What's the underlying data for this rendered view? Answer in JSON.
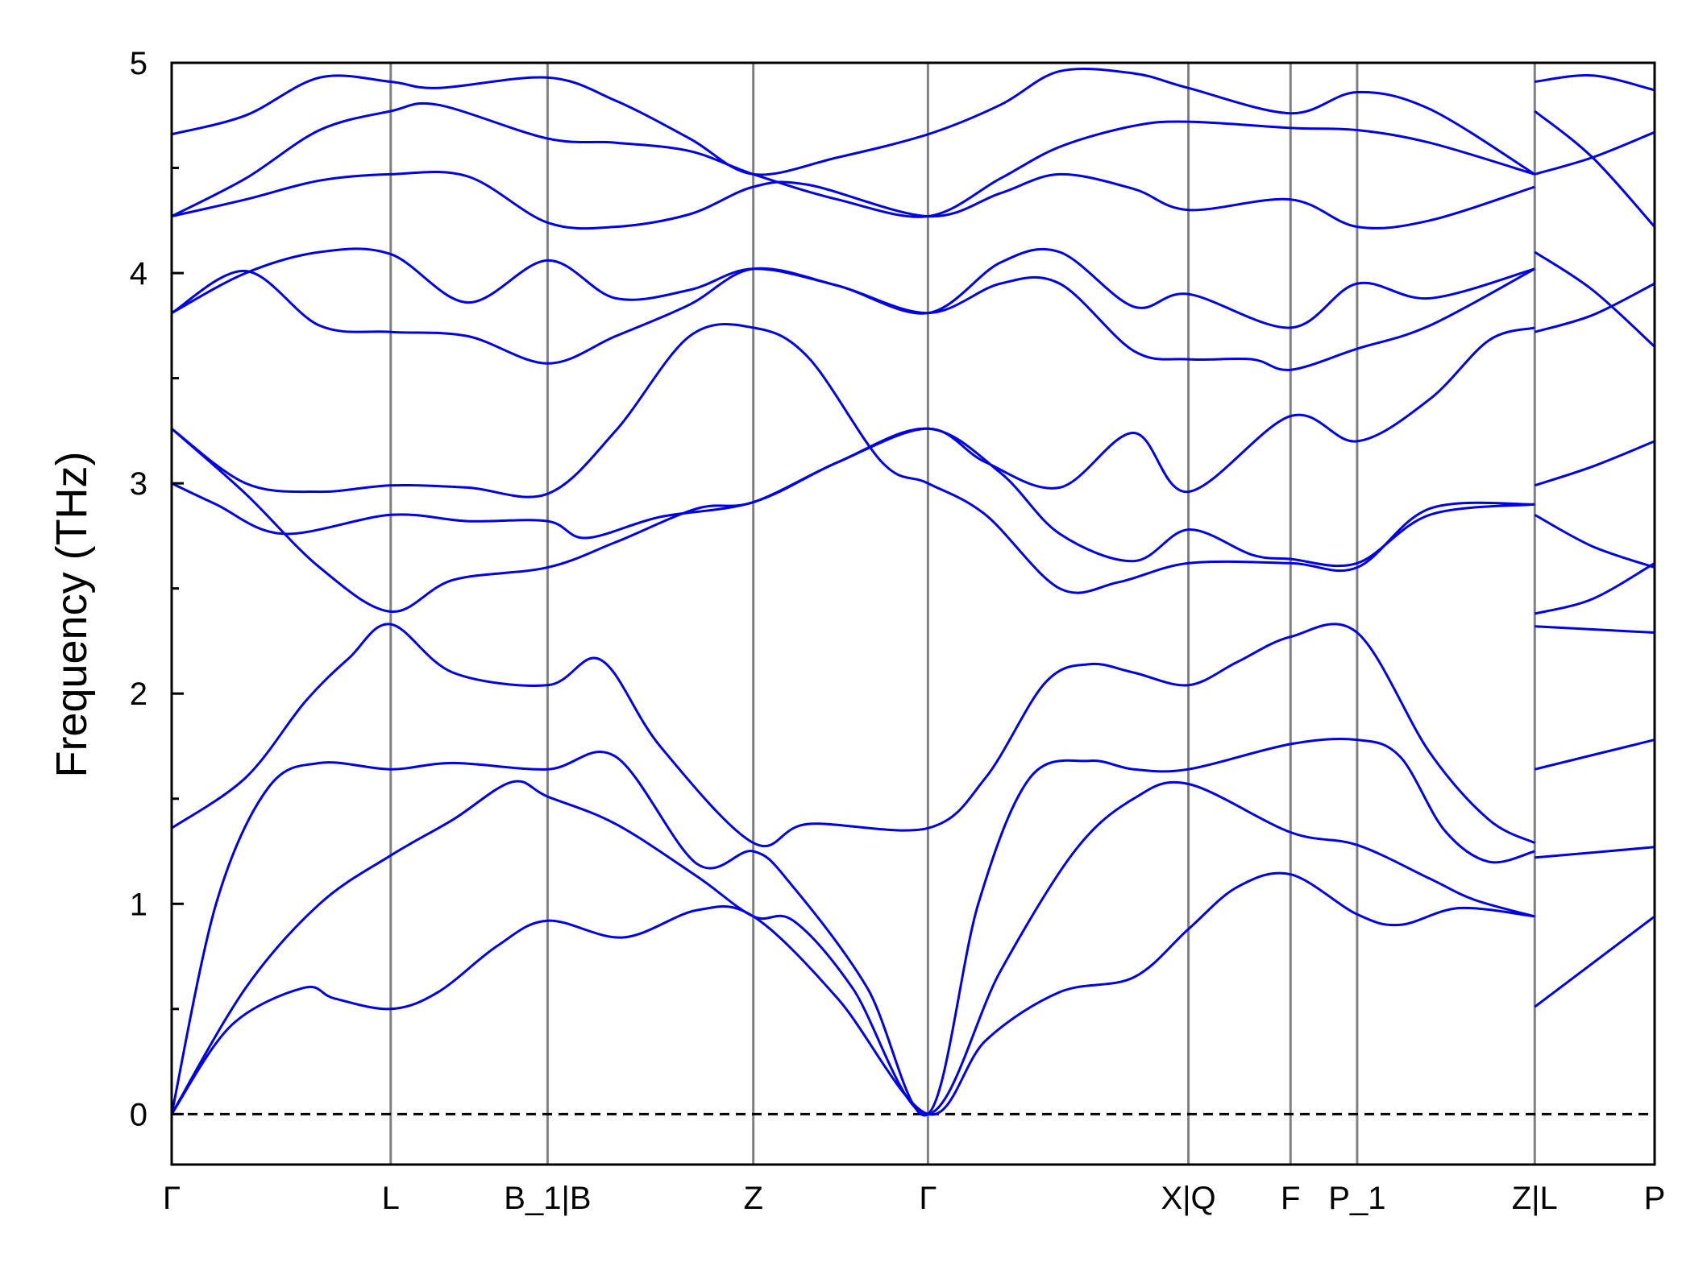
{
  "chart_data": {
    "type": "line",
    "title": "",
    "xlabel": "",
    "ylabel": "Frequency (THz)",
    "ylim": [
      -0.24,
      5.0
    ],
    "y_ticks": [
      0,
      1,
      2,
      3,
      4,
      5
    ],
    "y_minor_ticks": [
      0.5,
      1.5,
      2.5,
      3.5,
      4.5
    ],
    "grid": false,
    "legend": "none",
    "line_color": "#0000e6",
    "kpath_line_color": "#808080",
    "zero_line": {
      "y": 0,
      "style": "dashed",
      "color": "#000000"
    },
    "kpoints": [
      {
        "label": "Γ",
        "x": 0.0
      },
      {
        "label": "L",
        "x": 1.48
      },
      {
        "label": "B_1|B",
        "x": 2.54
      },
      {
        "label": "Z",
        "x": 3.93
      },
      {
        "label": "Γ",
        "x": 5.11
      },
      {
        "label": "X|Q",
        "x": 6.87
      },
      {
        "label": "F",
        "x": 7.56
      },
      {
        "label": "P_1",
        "x": 8.01
      },
      {
        "label": "Z|L",
        "x": 9.21
      },
      {
        "label": "P",
        "x": 10.02
      }
    ],
    "xlim": [
      0.0,
      10.02
    ],
    "series": [
      {
        "values": [
          [
            0.0,
            0.0
          ],
          [
            0.4,
            0.42
          ],
          [
            0.89,
            0.6
          ],
          [
            1.1,
            0.55
          ],
          [
            1.48,
            0.5
          ],
          [
            1.8,
            0.58
          ],
          [
            2.2,
            0.8
          ],
          [
            2.54,
            0.92
          ],
          [
            3.05,
            0.84
          ],
          [
            3.55,
            0.97
          ],
          [
            3.93,
            0.94
          ],
          [
            4.5,
            0.55
          ],
          [
            5.11,
            0.0
          ],
          [
            5.5,
            0.35
          ],
          [
            6.0,
            0.58
          ],
          [
            6.5,
            0.65
          ],
          [
            6.87,
            0.88
          ],
          [
            7.2,
            1.08
          ],
          [
            7.56,
            1.14
          ],
          [
            8.01,
            0.95
          ],
          [
            8.3,
            0.9
          ],
          [
            8.7,
            0.98
          ],
          [
            9.21,
            0.94
          ]
        ]
      },
      {
        "values": [
          [
            9.21,
            0.51
          ],
          [
            10.02,
            0.94
          ]
        ]
      },
      {
        "values": [
          [
            0.0,
            0.0
          ],
          [
            0.5,
            0.6
          ],
          [
            1.0,
            1.0
          ],
          [
            1.48,
            1.23
          ],
          [
            1.9,
            1.4
          ],
          [
            2.3,
            1.58
          ],
          [
            2.54,
            1.51
          ],
          [
            3.0,
            1.38
          ],
          [
            3.55,
            1.13
          ],
          [
            3.93,
            0.94
          ],
          [
            4.2,
            0.92
          ],
          [
            4.6,
            0.6
          ],
          [
            5.11,
            0.0
          ],
          [
            5.6,
            0.68
          ],
          [
            6.1,
            1.25
          ],
          [
            6.5,
            1.5
          ],
          [
            6.87,
            1.57
          ],
          [
            7.56,
            1.34
          ],
          [
            8.01,
            1.28
          ],
          [
            8.5,
            1.12
          ],
          [
            8.8,
            1.02
          ],
          [
            9.21,
            0.94
          ]
        ]
      },
      {
        "values": [
          [
            9.21,
            1.22
          ],
          [
            10.02,
            1.27
          ]
        ]
      },
      {
        "values": [
          [
            0.0,
            0.0
          ],
          [
            0.3,
            1.0
          ],
          [
            0.65,
            1.55
          ],
          [
            1.0,
            1.67
          ],
          [
            1.48,
            1.64
          ],
          [
            1.9,
            1.67
          ],
          [
            2.54,
            1.64
          ],
          [
            3.0,
            1.7
          ],
          [
            3.55,
            1.19
          ],
          [
            3.93,
            1.25
          ],
          [
            4.2,
            1.08
          ],
          [
            4.7,
            0.6
          ],
          [
            5.11,
            0.0
          ],
          [
            5.45,
            1.0
          ],
          [
            5.8,
            1.6
          ],
          [
            6.2,
            1.68
          ],
          [
            6.5,
            1.64
          ],
          [
            6.87,
            1.64
          ],
          [
            7.56,
            1.76
          ],
          [
            8.01,
            1.78
          ],
          [
            8.3,
            1.7
          ],
          [
            8.6,
            1.35
          ],
          [
            8.9,
            1.2
          ],
          [
            9.21,
            1.25
          ]
        ]
      },
      {
        "values": [
          [
            9.21,
            1.64
          ],
          [
            10.02,
            1.78
          ]
        ]
      },
      {
        "values": [
          [
            0.0,
            1.36
          ],
          [
            0.5,
            1.6
          ],
          [
            0.9,
            1.96
          ],
          [
            1.2,
            2.17
          ],
          [
            1.48,
            2.33
          ],
          [
            1.9,
            2.1
          ],
          [
            2.54,
            2.04
          ],
          [
            2.9,
            2.16
          ],
          [
            3.3,
            1.75
          ],
          [
            3.93,
            1.29
          ],
          [
            4.3,
            1.38
          ],
          [
            5.11,
            1.36
          ],
          [
            5.5,
            1.6
          ],
          [
            5.9,
            2.05
          ],
          [
            6.2,
            2.14
          ],
          [
            6.5,
            2.1
          ],
          [
            6.87,
            2.04
          ],
          [
            7.2,
            2.15
          ],
          [
            7.56,
            2.27
          ],
          [
            8.01,
            2.29
          ],
          [
            8.5,
            1.72
          ],
          [
            8.9,
            1.4
          ],
          [
            9.21,
            1.29
          ]
        ]
      },
      {
        "values": [
          [
            9.21,
            2.32
          ],
          [
            10.02,
            2.29
          ]
        ]
      },
      {
        "values": [
          [
            0.0,
            3.26
          ],
          [
            0.5,
            2.95
          ],
          [
            1.0,
            2.6
          ],
          [
            1.48,
            2.39
          ],
          [
            1.9,
            2.54
          ],
          [
            2.54,
            2.6
          ],
          [
            3.0,
            2.72
          ],
          [
            3.55,
            2.88
          ],
          [
            3.93,
            2.91
          ],
          [
            4.5,
            3.1
          ],
          [
            5.11,
            3.26
          ],
          [
            5.6,
            3.05
          ],
          [
            6.0,
            2.76
          ],
          [
            6.5,
            2.63
          ],
          [
            6.87,
            2.78
          ],
          [
            7.3,
            2.66
          ],
          [
            7.56,
            2.64
          ],
          [
            8.01,
            2.62
          ],
          [
            8.5,
            2.85
          ],
          [
            9.21,
            2.9
          ]
        ]
      },
      {
        "values": [
          [
            9.21,
            2.38
          ],
          [
            9.6,
            2.45
          ],
          [
            10.02,
            2.62
          ]
        ]
      },
      {
        "values": [
          [
            0.0,
            3.0
          ],
          [
            0.3,
            2.9
          ],
          [
            0.75,
            2.76
          ],
          [
            1.48,
            2.85
          ],
          [
            2.0,
            2.82
          ],
          [
            2.54,
            2.82
          ],
          [
            2.8,
            2.74
          ],
          [
            3.3,
            2.84
          ],
          [
            3.93,
            2.91
          ],
          [
            4.5,
            3.1
          ],
          [
            5.11,
            3.26
          ],
          [
            5.5,
            3.1
          ],
          [
            6.0,
            2.98
          ],
          [
            6.5,
            3.24
          ],
          [
            6.87,
            2.96
          ],
          [
            7.56,
            3.32
          ],
          [
            8.01,
            3.2
          ],
          [
            8.5,
            3.4
          ],
          [
            8.9,
            3.68
          ],
          [
            9.21,
            3.74
          ]
        ]
      },
      {
        "values": [
          [
            9.21,
            2.85
          ],
          [
            9.6,
            2.7
          ],
          [
            10.02,
            2.6
          ]
        ]
      },
      {
        "values": [
          [
            0.0,
            3.26
          ],
          [
            0.5,
            3.0
          ],
          [
            1.0,
            2.96
          ],
          [
            1.48,
            2.99
          ],
          [
            2.0,
            2.98
          ],
          [
            2.54,
            2.95
          ],
          [
            3.0,
            3.25
          ],
          [
            3.5,
            3.7
          ],
          [
            3.93,
            3.74
          ],
          [
            4.3,
            3.6
          ],
          [
            4.8,
            3.1
          ],
          [
            5.11,
            3.0
          ],
          [
            5.5,
            2.85
          ],
          [
            6.0,
            2.5
          ],
          [
            6.4,
            2.53
          ],
          [
            6.87,
            2.62
          ],
          [
            7.56,
            2.62
          ],
          [
            8.01,
            2.6
          ],
          [
            8.5,
            2.88
          ],
          [
            9.21,
            2.9
          ]
        ]
      },
      {
        "values": [
          [
            9.21,
            2.99
          ],
          [
            9.6,
            3.08
          ],
          [
            10.02,
            3.2
          ]
        ]
      },
      {
        "values": [
          [
            0.0,
            3.81
          ],
          [
            0.5,
            4.0
          ],
          [
            1.0,
            4.1
          ],
          [
            1.48,
            4.09
          ],
          [
            2.0,
            3.86
          ],
          [
            2.54,
            4.06
          ],
          [
            3.0,
            3.88
          ],
          [
            3.5,
            3.92
          ],
          [
            3.93,
            4.02
          ],
          [
            4.5,
            3.94
          ],
          [
            5.11,
            3.81
          ],
          [
            5.6,
            4.05
          ],
          [
            6.0,
            4.1
          ],
          [
            6.5,
            3.84
          ],
          [
            6.87,
            3.9
          ],
          [
            7.56,
            3.74
          ],
          [
            8.01,
            3.95
          ],
          [
            8.5,
            3.88
          ],
          [
            9.21,
            4.02
          ]
        ]
      },
      {
        "values": [
          [
            9.21,
            3.72
          ],
          [
            9.6,
            3.8
          ],
          [
            10.02,
            3.95
          ]
        ]
      },
      {
        "values": [
          [
            0.0,
            3.81
          ],
          [
            0.5,
            4.01
          ],
          [
            1.0,
            3.75
          ],
          [
            1.48,
            3.72
          ],
          [
            2.0,
            3.7
          ],
          [
            2.54,
            3.57
          ],
          [
            3.0,
            3.7
          ],
          [
            3.5,
            3.85
          ],
          [
            3.93,
            4.02
          ],
          [
            4.5,
            3.94
          ],
          [
            5.11,
            3.81
          ],
          [
            5.6,
            3.95
          ],
          [
            6.0,
            3.95
          ],
          [
            6.5,
            3.63
          ],
          [
            6.87,
            3.59
          ],
          [
            7.3,
            3.59
          ],
          [
            7.56,
            3.54
          ],
          [
            8.01,
            3.64
          ],
          [
            8.5,
            3.75
          ],
          [
            9.21,
            4.02
          ]
        ]
      },
      {
        "values": [
          [
            9.21,
            4.1
          ],
          [
            9.6,
            3.92
          ],
          [
            10.02,
            3.65
          ]
        ]
      },
      {
        "values": [
          [
            0.0,
            4.27
          ],
          [
            0.5,
            4.35
          ],
          [
            1.0,
            4.44
          ],
          [
            1.48,
            4.47
          ],
          [
            2.0,
            4.46
          ],
          [
            2.54,
            4.24
          ],
          [
            3.0,
            4.22
          ],
          [
            3.5,
            4.28
          ],
          [
            3.93,
            4.41
          ],
          [
            4.3,
            4.42
          ],
          [
            5.11,
            4.27
          ],
          [
            5.6,
            4.38
          ],
          [
            6.0,
            4.47
          ],
          [
            6.5,
            4.4
          ],
          [
            6.87,
            4.3
          ],
          [
            7.56,
            4.35
          ],
          [
            8.01,
            4.22
          ],
          [
            8.5,
            4.25
          ],
          [
            9.21,
            4.41
          ]
        ]
      },
      {
        "values": [
          [
            9.21,
            4.47
          ],
          [
            9.6,
            4.55
          ],
          [
            10.02,
            4.67
          ]
        ]
      },
      {
        "values": [
          [
            0.0,
            4.27
          ],
          [
            0.5,
            4.45
          ],
          [
            1.0,
            4.68
          ],
          [
            1.48,
            4.77
          ],
          [
            1.8,
            4.8
          ],
          [
            2.54,
            4.64
          ],
          [
            3.0,
            4.62
          ],
          [
            3.5,
            4.58
          ],
          [
            3.93,
            4.47
          ],
          [
            4.5,
            4.35
          ],
          [
            5.11,
            4.27
          ],
          [
            5.6,
            4.45
          ],
          [
            6.0,
            4.6
          ],
          [
            6.5,
            4.7
          ],
          [
            6.87,
            4.72
          ],
          [
            7.56,
            4.69
          ],
          [
            8.01,
            4.68
          ],
          [
            8.5,
            4.62
          ],
          [
            9.21,
            4.47
          ]
        ]
      },
      {
        "values": [
          [
            9.21,
            4.77
          ],
          [
            9.6,
            4.55
          ],
          [
            10.02,
            4.22
          ]
        ]
      },
      {
        "values": [
          [
            0.0,
            4.66
          ],
          [
            0.5,
            4.75
          ],
          [
            1.0,
            4.93
          ],
          [
            1.48,
            4.91
          ],
          [
            1.8,
            4.88
          ],
          [
            2.54,
            4.93
          ],
          [
            3.0,
            4.82
          ],
          [
            3.5,
            4.64
          ],
          [
            3.93,
            4.47
          ],
          [
            4.5,
            4.55
          ],
          [
            5.11,
            4.66
          ],
          [
            5.6,
            4.8
          ],
          [
            6.0,
            4.96
          ],
          [
            6.5,
            4.95
          ],
          [
            6.87,
            4.88
          ],
          [
            7.56,
            4.76
          ],
          [
            8.01,
            4.86
          ],
          [
            8.5,
            4.78
          ],
          [
            9.21,
            4.47
          ]
        ]
      },
      {
        "values": [
          [
            9.21,
            4.91
          ],
          [
            9.6,
            4.94
          ],
          [
            10.02,
            4.87
          ]
        ]
      }
    ]
  }
}
